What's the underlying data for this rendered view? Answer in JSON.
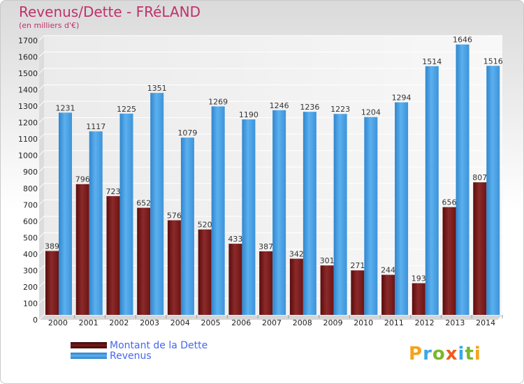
{
  "header": {
    "title": "Revenus/Dette - FRéLAND",
    "subtitle": "(en milliers d'€)"
  },
  "legend": {
    "items": [
      {
        "label": "Montant de la Dette",
        "color": "#7a1a1a"
      },
      {
        "label": "Revenus",
        "color": "#49a2e6"
      }
    ]
  },
  "logo": {
    "text": "Proxiti",
    "letters": [
      {
        "ch": "P",
        "color": "#f4a31c"
      },
      {
        "ch": "r",
        "color": "#3aa8e8"
      },
      {
        "ch": "o",
        "color": "#79b829"
      },
      {
        "ch": "x",
        "color": "#ef5a1d"
      },
      {
        "ch": "i",
        "color": "#3aa8e8"
      },
      {
        "ch": "t",
        "color": "#79b829"
      },
      {
        "ch": "i",
        "color": "#f4a31c"
      }
    ]
  },
  "chart_data": {
    "type": "bar",
    "categories": [
      "2000",
      "2001",
      "2002",
      "2003",
      "2004",
      "2005",
      "2006",
      "2007",
      "2008",
      "2009",
      "2010",
      "2011",
      "2012",
      "2013",
      "2014"
    ],
    "series": [
      {
        "name": "Montant de la Dette",
        "color": "#7a1a1a",
        "values": [
          389,
          796,
          723,
          652,
          576,
          520,
          433,
          387,
          342,
          301,
          271,
          244,
          193,
          656,
          807
        ]
      },
      {
        "name": "Revenus",
        "color": "#49a2e6",
        "values": [
          1231,
          1117,
          1225,
          1351,
          1079,
          1269,
          1190,
          1246,
          1236,
          1223,
          1204,
          1294,
          1514,
          1646,
          1516
        ]
      }
    ],
    "title": "Revenus/Dette - FRéLAND",
    "subtitle": "(en milliers d'€)",
    "ylim": [
      0,
      1700
    ],
    "yticks": [
      0,
      100,
      200,
      300,
      400,
      500,
      600,
      700,
      800,
      900,
      1000,
      1100,
      1200,
      1300,
      1400,
      1500,
      1600,
      1700
    ],
    "grid": true,
    "legend_position": "bottom-left"
  }
}
